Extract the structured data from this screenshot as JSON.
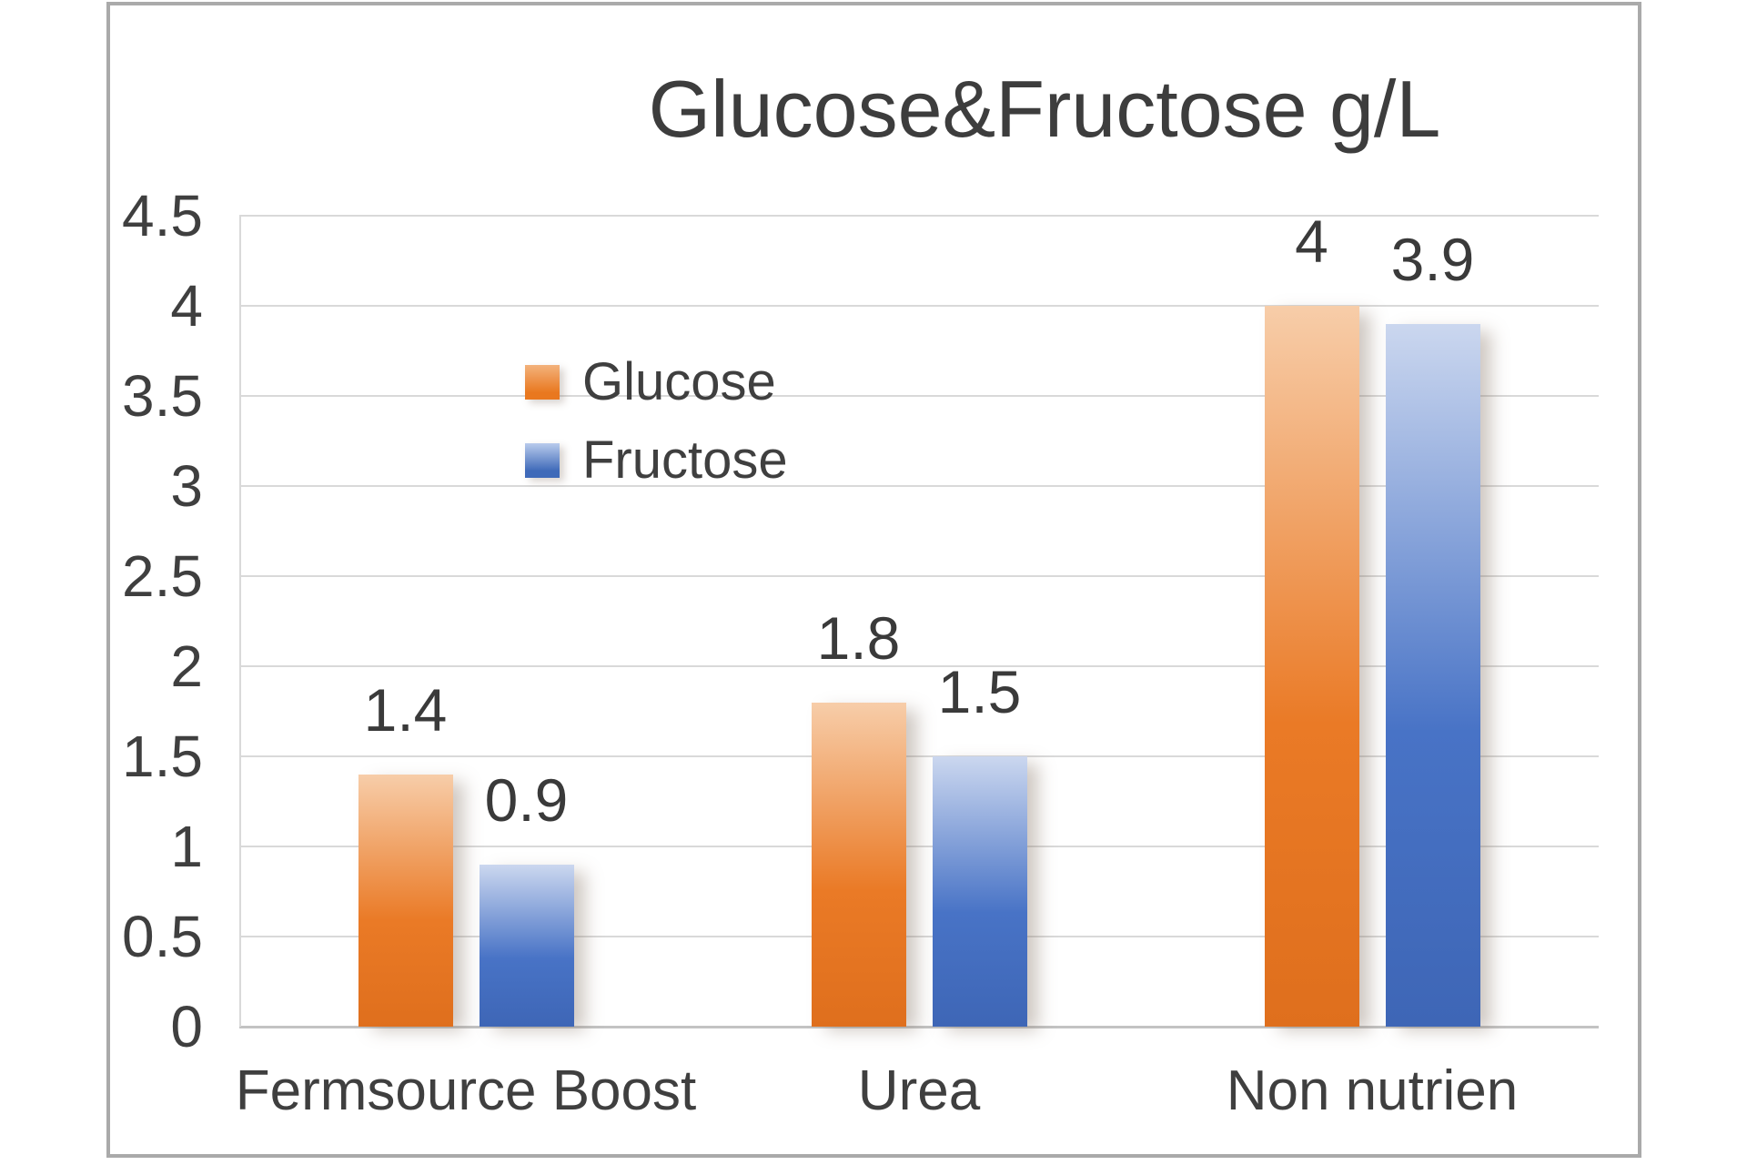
{
  "title": "Glucose&Fructose g/L",
  "chart_data": {
    "type": "bar",
    "title": "Glucose&Fructose g/L",
    "categories": [
      "Fermsource Boost",
      "Urea",
      "Non nutrien"
    ],
    "series": [
      {
        "name": "Glucose",
        "color": "#E8761F",
        "color_light": "#F7CDA9",
        "values": [
          1.4,
          1.8,
          4
        ]
      },
      {
        "name": "Fructose",
        "color": "#4472C4",
        "color_light": "#CBD7EF",
        "values": [
          0.9,
          1.5,
          3.9
        ]
      }
    ],
    "data_labels": [
      [
        "1.4",
        "1.8",
        "4"
      ],
      [
        "0.9",
        "1.5",
        "3.9"
      ]
    ],
    "y_axis": {
      "min": 0,
      "max": 4.5,
      "step": 0.5,
      "tick_labels": [
        "4.5",
        "4",
        "3.5",
        "3",
        "2.5",
        "2",
        "1.5",
        "1",
        "0.5",
        "0"
      ]
    },
    "grid": true,
    "legend_position": "inside-upper-left",
    "colors": {
      "grid": "#D9D9D9",
      "axis": "#C3C3C3",
      "text": "#3F3F3F",
      "frame": "#AAAAAA"
    }
  }
}
